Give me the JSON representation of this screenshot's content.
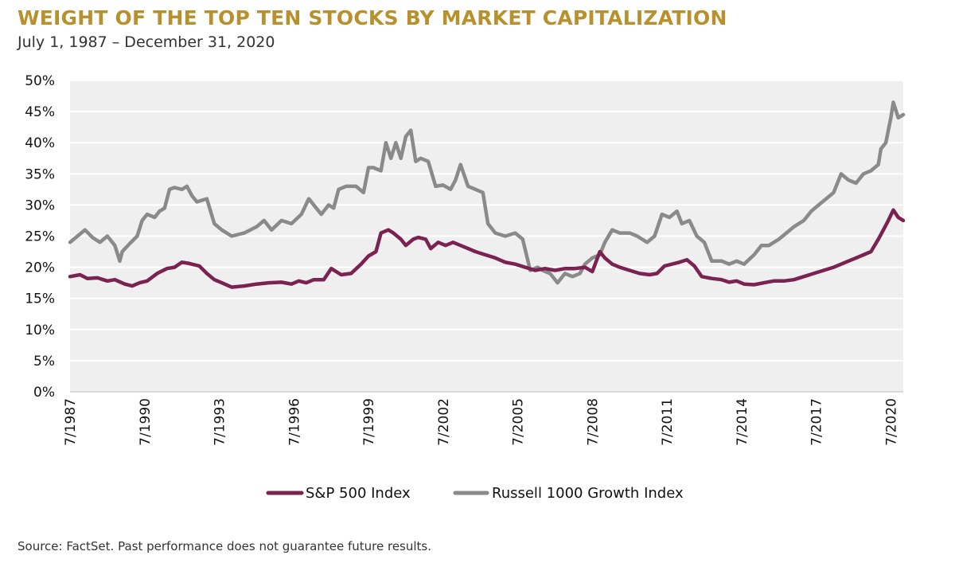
{
  "header": {
    "title": "WEIGHT OF THE TOP TEN STOCKS BY MARKET CAPITALIZATION",
    "subtitle": "July 1, 1987 – December 31, 2020"
  },
  "footer": {
    "source": "Source: FactSet. Past performance does not guarantee future results."
  },
  "colors": {
    "title": "#B8912C",
    "sp500": "#7A2350",
    "russell": "#8A8A8A",
    "plot_bg": "#EFEFEF",
    "grid": "#FFFFFF"
  },
  "chart_data": {
    "type": "line",
    "title": "WEIGHT OF THE TOP TEN STOCKS BY MARKET CAPITALIZATION",
    "subtitle": "July 1, 1987 – December 31, 2020",
    "xlabel": "",
    "ylabel": "",
    "xlim": [
      1987.5,
      2021.0
    ],
    "ylim": [
      0,
      50
    ],
    "y_ticks": [
      0,
      5,
      10,
      15,
      20,
      25,
      30,
      35,
      40,
      45,
      50
    ],
    "y_tick_labels": [
      "0%",
      "5%",
      "10%",
      "15%",
      "20%",
      "25%",
      "30%",
      "35%",
      "40%",
      "45%",
      "50%"
    ],
    "x_ticks": [
      1987.5,
      1990.5,
      1993.5,
      1996.5,
      1999.5,
      2002.5,
      2005.5,
      2008.5,
      2011.5,
      2014.5,
      2017.5,
      2020.5
    ],
    "x_tick_labels": [
      "7/1987",
      "7/1990",
      "7/1993",
      "7/1996",
      "7/1999",
      "7/2002",
      "7/2005",
      "7/2008",
      "7/2011",
      "7/2014",
      "7/2017",
      "7/2020"
    ],
    "grid": true,
    "legend_position": "bottom-center",
    "series": [
      {
        "name": "S&P 500 Index",
        "x": [
          1987.5,
          1987.9,
          1988.2,
          1988.6,
          1989.0,
          1989.3,
          1989.7,
          1990.0,
          1990.3,
          1990.6,
          1991.0,
          1991.4,
          1991.7,
          1992.0,
          1992.3,
          1992.7,
          1993.0,
          1993.3,
          1993.6,
          1994.0,
          1994.5,
          1995.0,
          1995.5,
          1996.0,
          1996.4,
          1996.7,
          1997.0,
          1997.3,
          1997.7,
          1998.0,
          1998.4,
          1998.8,
          1999.2,
          1999.5,
          1999.8,
          2000.0,
          2000.3,
          2000.5,
          2000.8,
          2001.0,
          2001.3,
          2001.5,
          2001.8,
          2002.0,
          2002.3,
          2002.6,
          2002.9,
          2003.2,
          2003.5,
          2003.8,
          2004.2,
          2004.6,
          2005.0,
          2005.4,
          2005.8,
          2006.2,
          2006.6,
          2007.0,
          2007.4,
          2007.8,
          2008.2,
          2008.5,
          2008.8,
          2009.0,
          2009.3,
          2009.6,
          2010.0,
          2010.4,
          2010.8,
          2011.1,
          2011.4,
          2011.7,
          2012.0,
          2012.3,
          2012.6,
          2012.9,
          2013.3,
          2013.7,
          2014.0,
          2014.3,
          2014.6,
          2015.0,
          2015.4,
          2015.8,
          2016.2,
          2016.6,
          2017.0,
          2017.4,
          2017.8,
          2018.2,
          2018.5,
          2018.8,
          2019.1,
          2019.4,
          2019.7,
          2020.0,
          2020.2,
          2020.4,
          2020.6,
          2020.8,
          2021.0
        ],
        "values": [
          18.5,
          18.8,
          18.2,
          18.3,
          17.8,
          18.0,
          17.3,
          17.0,
          17.5,
          17.8,
          19.0,
          19.8,
          20.0,
          20.8,
          20.6,
          20.2,
          19.0,
          18.0,
          17.5,
          16.8,
          17.0,
          17.3,
          17.5,
          17.6,
          17.3,
          17.8,
          17.5,
          18.0,
          18.0,
          19.8,
          18.8,
          19.0,
          20.5,
          21.8,
          22.5,
          25.5,
          26.0,
          25.5,
          24.5,
          23.5,
          24.5,
          24.8,
          24.5,
          23.0,
          24.0,
          23.5,
          24.0,
          23.5,
          23.0,
          22.5,
          22.0,
          21.5,
          20.8,
          20.5,
          20.0,
          19.5,
          19.8,
          19.5,
          19.8,
          19.8,
          20.0,
          19.3,
          22.5,
          21.5,
          20.5,
          20.0,
          19.5,
          19.0,
          18.8,
          19.0,
          20.2,
          20.5,
          20.8,
          21.2,
          20.2,
          18.5,
          18.2,
          18.0,
          17.6,
          17.8,
          17.3,
          17.2,
          17.5,
          17.8,
          17.8,
          18.0,
          18.5,
          19.0,
          19.5,
          20.0,
          20.5,
          21.0,
          21.5,
          22.0,
          22.5,
          24.5,
          26.0,
          27.5,
          29.2,
          28.0,
          27.5
        ]
      },
      {
        "name": "Russell 1000 Growth Index",
        "x": [
          1987.5,
          1987.8,
          1988.1,
          1988.4,
          1988.7,
          1989.0,
          1989.3,
          1989.5,
          1989.6,
          1989.9,
          1990.2,
          1990.4,
          1990.6,
          1990.9,
          1991.1,
          1991.3,
          1991.5,
          1991.7,
          1992.0,
          1992.2,
          1992.4,
          1992.6,
          1993.0,
          1993.3,
          1993.6,
          1994.0,
          1994.5,
          1995.0,
          1995.3,
          1995.6,
          1996.0,
          1996.4,
          1996.8,
          1997.1,
          1997.3,
          1997.6,
          1997.9,
          1998.1,
          1998.3,
          1998.6,
          1999.0,
          1999.3,
          1999.5,
          1999.7,
          2000.0,
          2000.2,
          2000.4,
          2000.6,
          2000.8,
          2001.0,
          2001.2,
          2001.4,
          2001.6,
          2001.9,
          2002.2,
          2002.5,
          2002.8,
          2003.0,
          2003.2,
          2003.5,
          2003.8,
          2004.1,
          2004.3,
          2004.6,
          2005.0,
          2005.4,
          2005.7,
          2006.0,
          2006.3,
          2006.5,
          2006.8,
          2007.1,
          2007.4,
          2007.7,
          2008.0,
          2008.2,
          2008.5,
          2008.8,
          2009.0,
          2009.3,
          2009.6,
          2010.0,
          2010.3,
          2010.7,
          2011.0,
          2011.3,
          2011.6,
          2011.9,
          2012.1,
          2012.4,
          2012.7,
          2013.0,
          2013.3,
          2013.7,
          2014.0,
          2014.3,
          2014.6,
          2015.0,
          2015.3,
          2015.6,
          2016.0,
          2016.3,
          2016.6,
          2017.0,
          2017.3,
          2017.6,
          2017.9,
          2018.2,
          2018.5,
          2018.8,
          2019.1,
          2019.4,
          2019.7,
          2020.0,
          2020.1,
          2020.3,
          2020.5,
          2020.6,
          2020.8,
          2021.0
        ],
        "values": [
          24.0,
          25.0,
          26.0,
          24.8,
          24.0,
          25.0,
          23.5,
          21.0,
          22.5,
          23.8,
          25.0,
          27.5,
          28.5,
          28.0,
          29.0,
          29.5,
          32.5,
          32.8,
          32.5,
          33.0,
          31.5,
          30.5,
          31.0,
          27.0,
          26.0,
          25.0,
          25.5,
          26.5,
          27.5,
          26.0,
          27.5,
          27.0,
          28.5,
          31.0,
          30.0,
          28.5,
          30.0,
          29.5,
          32.5,
          33.0,
          33.0,
          32.0,
          36.0,
          36.0,
          35.5,
          40.0,
          37.5,
          40.0,
          37.5,
          41.0,
          42.0,
          37.0,
          37.5,
          37.0,
          33.0,
          33.2,
          32.5,
          34.0,
          36.5,
          33.0,
          32.5,
          32.0,
          27.0,
          25.5,
          25.0,
          25.5,
          24.5,
          19.5,
          20.0,
          19.5,
          19.0,
          17.5,
          19.0,
          18.5,
          19.0,
          20.5,
          21.5,
          22.0,
          24.0,
          26.0,
          25.5,
          25.5,
          25.0,
          24.0,
          25.0,
          28.5,
          28.0,
          29.0,
          27.0,
          27.5,
          25.0,
          24.0,
          21.0,
          21.0,
          20.5,
          21.0,
          20.5,
          22.0,
          23.5,
          23.5,
          24.5,
          25.5,
          26.5,
          27.5,
          29.0,
          30.0,
          31.0,
          32.0,
          35.0,
          34.0,
          33.5,
          35.0,
          35.5,
          36.5,
          39.0,
          40.0,
          44.0,
          46.5,
          44.0,
          44.5
        ]
      }
    ]
  }
}
